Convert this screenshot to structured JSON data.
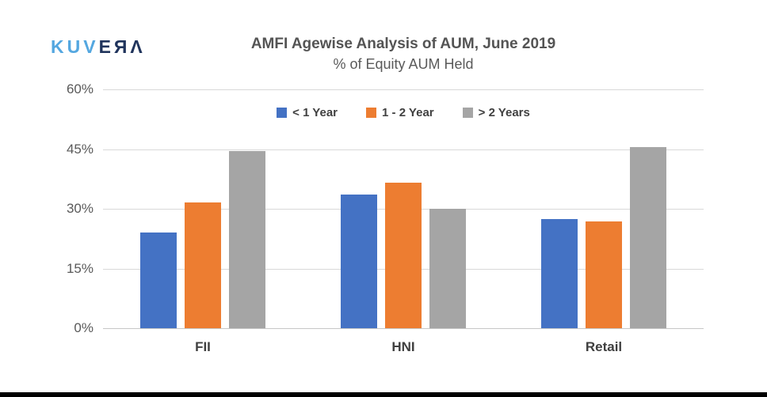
{
  "logo": {
    "primary": "KUV",
    "secondary": "EЯΛ",
    "primary_color": "#54a7e0",
    "secondary_color": "#20345c"
  },
  "header": {
    "title": "AMFI Agewise Analysis of AUM, June 2019",
    "subtitle": "% of Equity AUM Held"
  },
  "chart_data": {
    "type": "bar",
    "title": "AMFI Agewise Analysis of AUM, June 2019",
    "subtitle": "% of Equity AUM Held",
    "categories": [
      "FII",
      "HNI",
      "Retail"
    ],
    "series": [
      {
        "name": "< 1 Year",
        "color": "#4472c4",
        "values": [
          24.0,
          33.5,
          27.5
        ]
      },
      {
        "name": "1 - 2 Year",
        "color": "#ed7d31",
        "values": [
          31.5,
          36.5,
          26.8
        ]
      },
      {
        "name": "> 2 Years",
        "color": "#a5a5a5",
        "values": [
          44.5,
          30.0,
          45.5
        ]
      }
    ],
    "ylim": [
      0,
      60
    ],
    "yticks": [
      "60%",
      "45%",
      "30%",
      "15%",
      "0%"
    ],
    "grid": true,
    "legend_position": "top-center",
    "gridline_color": "#d9d9d9"
  }
}
